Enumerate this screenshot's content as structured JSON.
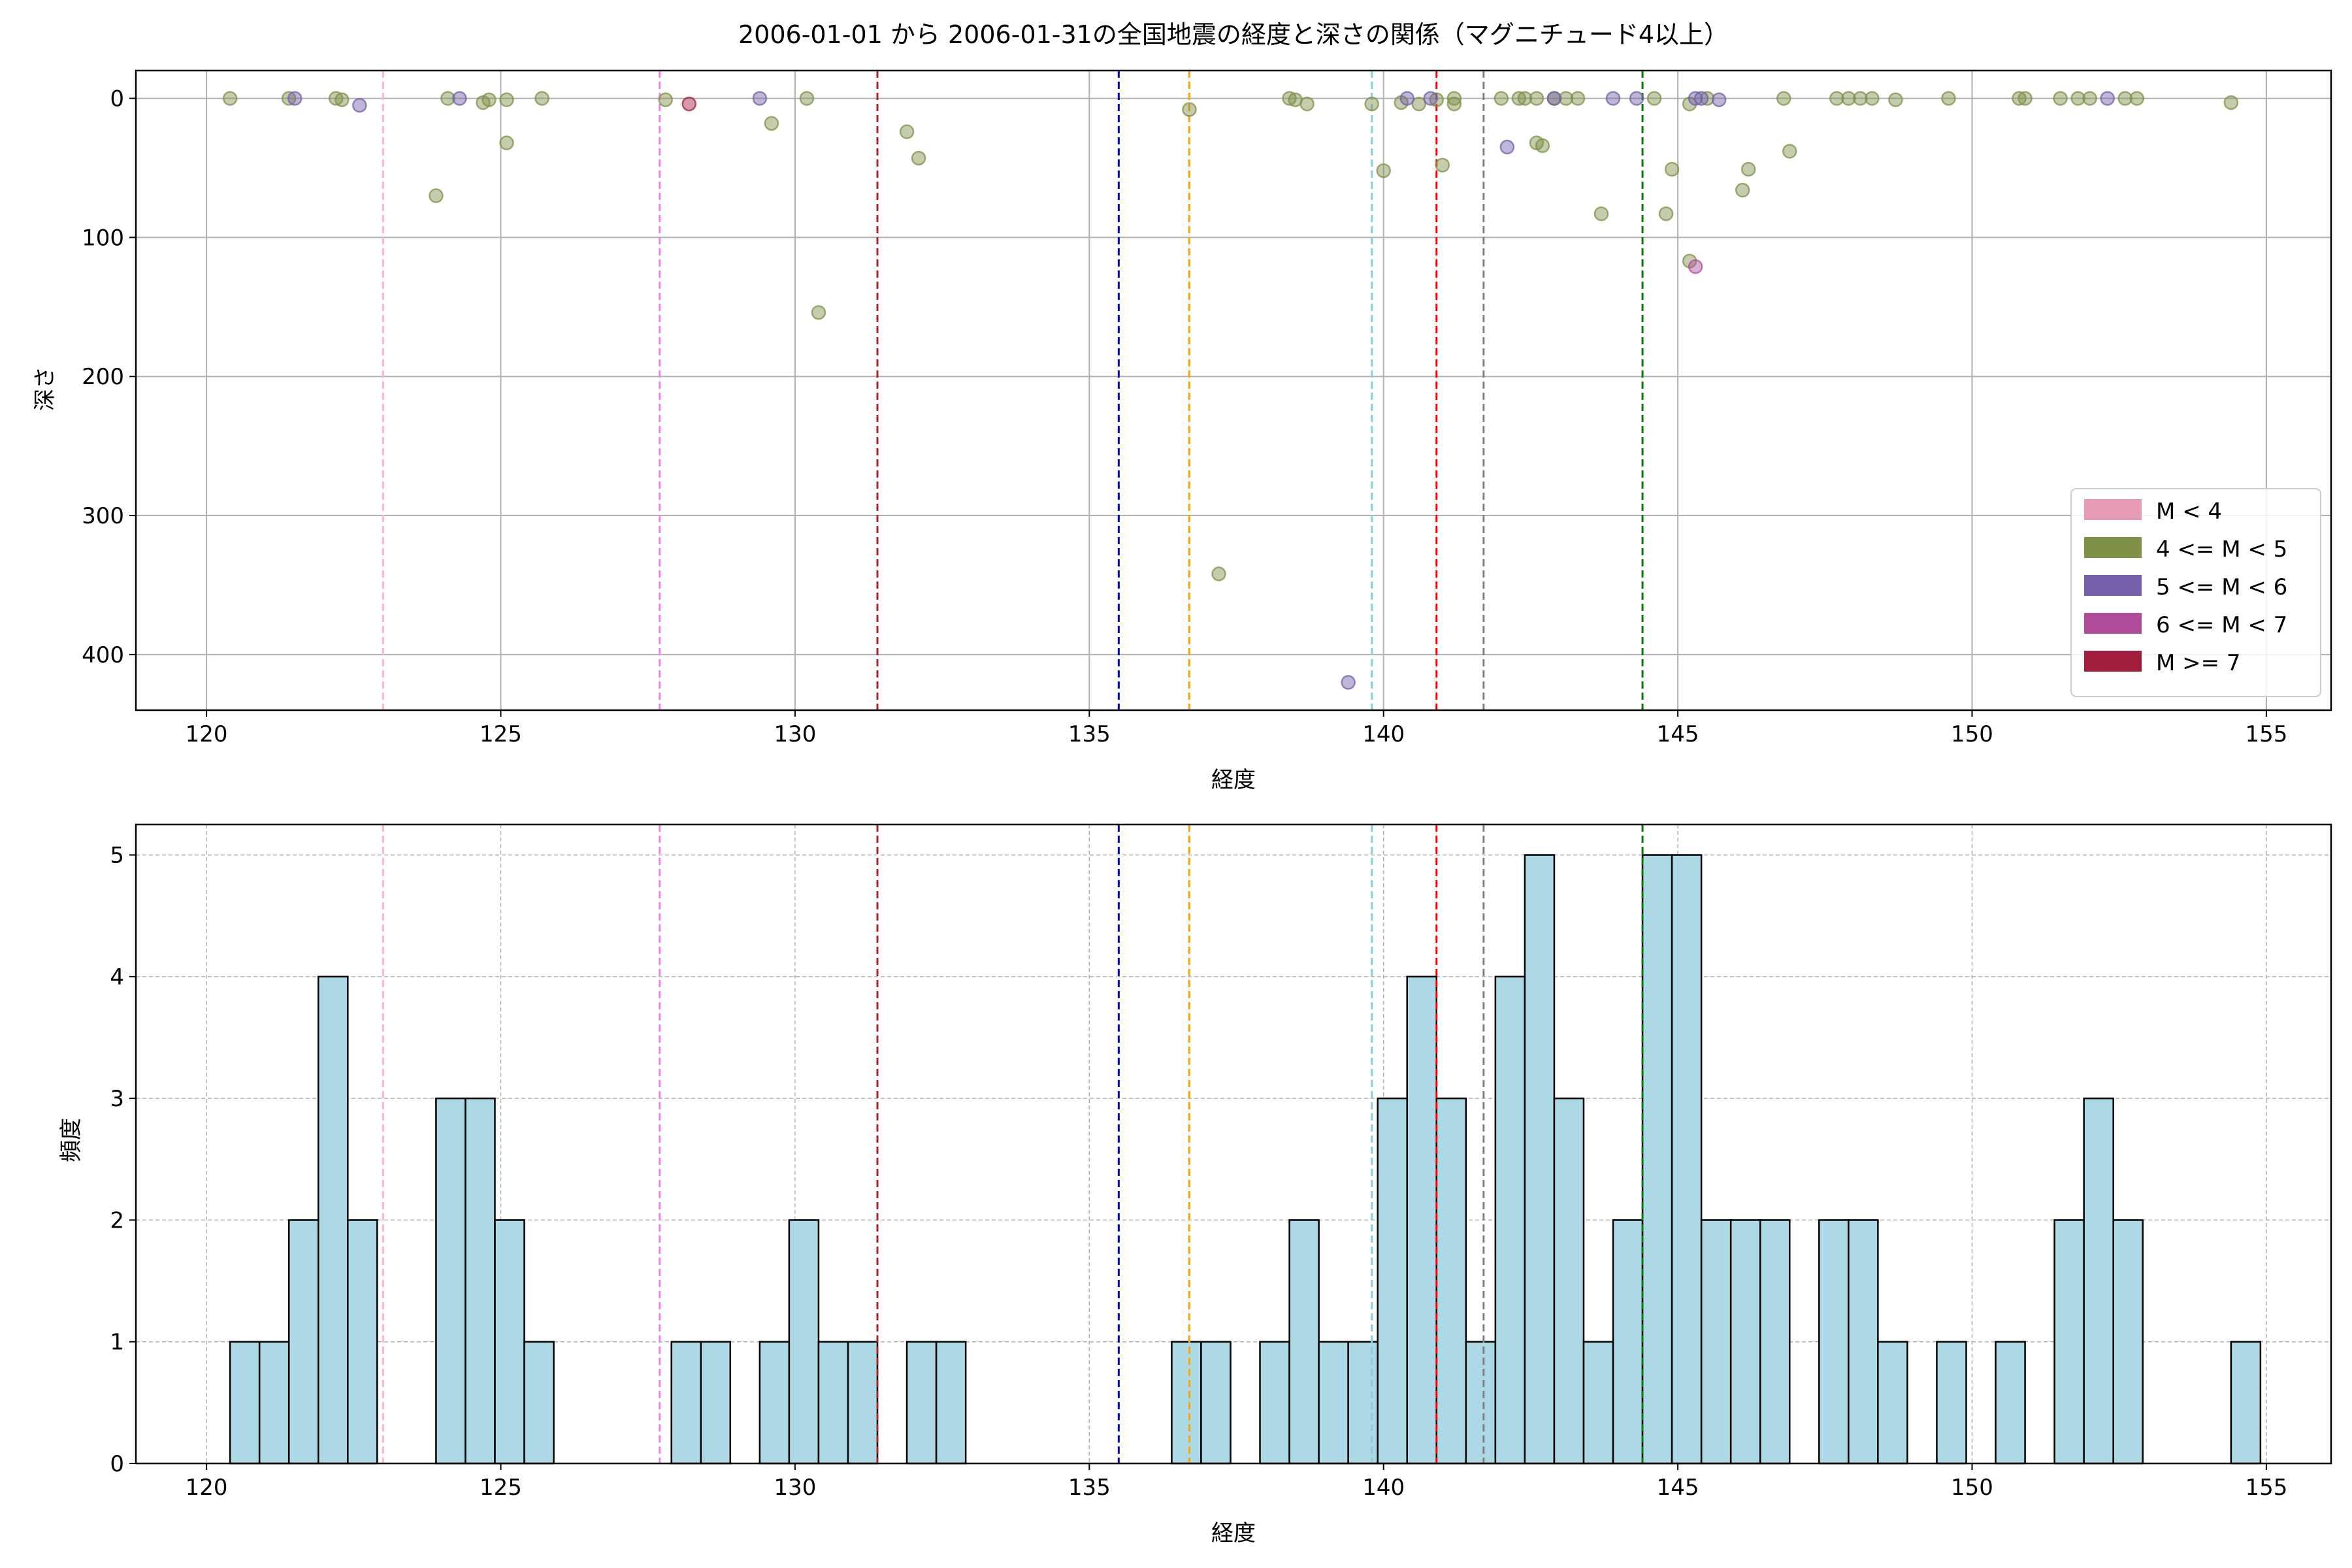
{
  "title": "2006-01-01 から 2006-01-31の全国地震の経度と深さの関係（マグニチュード4以上）",
  "colors": {
    "m_lt4": "#e69cb4",
    "m_4_5": "#7f9149",
    "m_5_6": "#7460a8",
    "m_6_7": "#b04d9b",
    "m_ge7": "#a01e3c",
    "hist_fill": "#add8e6",
    "hist_edge": "#000000",
    "grid": "#b0b0b0"
  },
  "legend": {
    "position": "lower-right",
    "entries": [
      {
        "label": "M < 4",
        "color_key": "m_lt4"
      },
      {
        "label": "4 <= M < 5",
        "color_key": "m_4_5"
      },
      {
        "label": "5 <= M < 6",
        "color_key": "m_5_6"
      },
      {
        "label": "6 <= M < 7",
        "color_key": "m_6_7"
      },
      {
        "label": "M >= 7",
        "color_key": "m_ge7"
      }
    ]
  },
  "chart_data": [
    {
      "type": "scatter",
      "title": "2006-01-01 から 2006-01-31の全国地震の経度と深さの関係（マグニチュード4以上）",
      "xlabel": "経度",
      "ylabel": "深さ",
      "xlim": [
        118.8,
        156.1
      ],
      "ylim": [
        440,
        -20
      ],
      "y_inverted": true,
      "xticks": [
        120,
        125,
        130,
        135,
        140,
        145,
        150,
        155
      ],
      "yticks": [
        0,
        100,
        200,
        300,
        400
      ],
      "grid": true,
      "vlines": [
        {
          "x": 123.0,
          "color": "#ffb6c1"
        },
        {
          "x": 127.7,
          "color": "#ee82ee"
        },
        {
          "x": 131.4,
          "color": "#b22222"
        },
        {
          "x": 135.5,
          "color": "#0000cd"
        },
        {
          "x": 136.7,
          "color": "#ffa500"
        },
        {
          "x": 139.8,
          "color": "#87ceeb"
        },
        {
          "x": 140.9,
          "color": "#ff0000"
        },
        {
          "x": 141.7,
          "color": "#808080"
        },
        {
          "x": 144.4,
          "color": "#008000"
        }
      ],
      "series": [
        {
          "magnitude_class": "4 <= M < 5",
          "color_key": "m_4_5",
          "points": [
            [
              120.4,
              0
            ],
            [
              121.4,
              0
            ],
            [
              122.2,
              0
            ],
            [
              122.3,
              1
            ],
            [
              123.9,
              70
            ],
            [
              124.1,
              0
            ],
            [
              124.7,
              3
            ],
            [
              124.8,
              1
            ],
            [
              125.1,
              1
            ],
            [
              125.1,
              32
            ],
            [
              125.7,
              0
            ],
            [
              127.8,
              1
            ],
            [
              129.6,
              18
            ],
            [
              130.2,
              0
            ],
            [
              130.4,
              154
            ],
            [
              131.9,
              24
            ],
            [
              132.1,
              43
            ],
            [
              136.7,
              8
            ],
            [
              137.2,
              342
            ],
            [
              138.4,
              0
            ],
            [
              138.5,
              1
            ],
            [
              138.7,
              4
            ],
            [
              139.8,
              4
            ],
            [
              140.0,
              52
            ],
            [
              140.3,
              3
            ],
            [
              140.6,
              4
            ],
            [
              140.9,
              1
            ],
            [
              141.0,
              48
            ],
            [
              141.2,
              0
            ],
            [
              141.2,
              4
            ],
            [
              142.0,
              0
            ],
            [
              142.3,
              0
            ],
            [
              142.4,
              0
            ],
            [
              142.6,
              0
            ],
            [
              142.6,
              32
            ],
            [
              142.7,
              34
            ],
            [
              142.9,
              0
            ],
            [
              143.1,
              0
            ],
            [
              143.3,
              0
            ],
            [
              143.7,
              83
            ],
            [
              144.6,
              0
            ],
            [
              144.8,
              83
            ],
            [
              144.9,
              51
            ],
            [
              145.2,
              4
            ],
            [
              145.2,
              117
            ],
            [
              145.5,
              0
            ],
            [
              146.1,
              66
            ],
            [
              146.2,
              51
            ],
            [
              146.8,
              0
            ],
            [
              146.9,
              38
            ],
            [
              147.7,
              0
            ],
            [
              147.9,
              0
            ],
            [
              148.1,
              0
            ],
            [
              148.3,
              0
            ],
            [
              148.7,
              1
            ],
            [
              149.6,
              0
            ],
            [
              150.8,
              0
            ],
            [
              150.9,
              0
            ],
            [
              151.5,
              0
            ],
            [
              151.8,
              0
            ],
            [
              152.0,
              0
            ],
            [
              152.6,
              0
            ],
            [
              152.8,
              0
            ],
            [
              154.4,
              3
            ]
          ]
        },
        {
          "magnitude_class": "5 <= M < 6",
          "color_key": "m_5_6",
          "points": [
            [
              121.5,
              0
            ],
            [
              122.6,
              5
            ],
            [
              124.3,
              0
            ],
            [
              129.4,
              0
            ],
            [
              139.4,
              420
            ],
            [
              140.4,
              0
            ],
            [
              140.8,
              0
            ],
            [
              142.1,
              35
            ],
            [
              142.9,
              0
            ],
            [
              143.9,
              0
            ],
            [
              144.3,
              0
            ],
            [
              145.3,
              0
            ],
            [
              145.4,
              0
            ],
            [
              145.7,
              1
            ],
            [
              152.3,
              0
            ]
          ]
        },
        {
          "magnitude_class": "6 <= M < 7",
          "color_key": "m_6_7",
          "points": [
            [
              145.3,
              121
            ]
          ]
        },
        {
          "magnitude_class": "M >= 7",
          "color_key": "m_ge7",
          "points": [
            [
              128.2,
              4
            ]
          ]
        }
      ]
    },
    {
      "type": "bar",
      "xlabel": "経度",
      "ylabel": "頻度",
      "xlim": [
        118.8,
        156.1
      ],
      "ylim": [
        0,
        5.25
      ],
      "xticks": [
        120,
        125,
        130,
        135,
        140,
        145,
        150,
        155
      ],
      "yticks": [
        0,
        1,
        2,
        3,
        4,
        5
      ],
      "grid": true,
      "bin_start": 120.4,
      "bin_width": 0.5,
      "counts": [
        1,
        1,
        2,
        4,
        2,
        0,
        0,
        3,
        3,
        2,
        1,
        0,
        0,
        0,
        0,
        1,
        1,
        0,
        1,
        2,
        1,
        1,
        0,
        1,
        1,
        0,
        0,
        0,
        0,
        0,
        0,
        0,
        1,
        1,
        0,
        1,
        2,
        1,
        1,
        3,
        4,
        3,
        1,
        4,
        5,
        3,
        1,
        2,
        5,
        5,
        2,
        2,
        2,
        0,
        2,
        2,
        1,
        0,
        1,
        0,
        1,
        0,
        2,
        3,
        2,
        0,
        0,
        0,
        1
      ]
    }
  ]
}
